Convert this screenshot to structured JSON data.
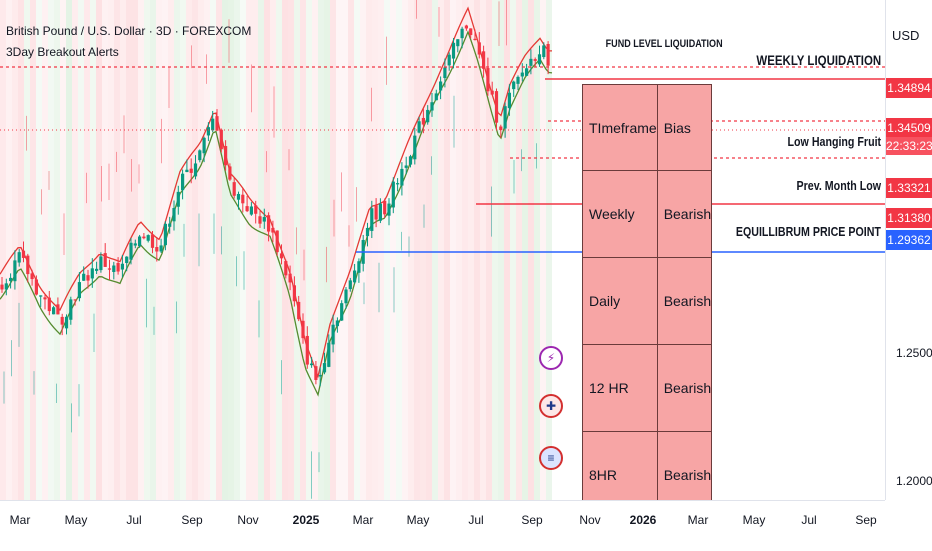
{
  "header": {
    "symbol_title": "British Pound / U.S. Dollar · 3D · FOREXCOM",
    "indicator_name": "3Day Breakout Alerts"
  },
  "annotations": {
    "fund_level": "FUND LEVEL LIQUIDATION",
    "weekly_liq": "WEEKLY LIQUIDATION",
    "low_hanging": "Low Hanging Fruit",
    "prev_month_low": "Prev. Month Low",
    "equilibrium": "EQUILLIBRUM PRICE POINT"
  },
  "price_axis": {
    "currency": "USD",
    "tags": [
      {
        "value": "1.34894",
        "color": "#f23645"
      },
      {
        "value": "1.34509",
        "color": "#f23645"
      },
      {
        "value": "22:33:23",
        "color": "#f23645"
      },
      {
        "value": "1.33321",
        "color": "#f23645"
      },
      {
        "value": "1.31380",
        "color": "#f23645"
      },
      {
        "value": "1.29362",
        "color": "#2962ff"
      }
    ],
    "labels": [
      "1.25000",
      "1.20000"
    ]
  },
  "time_axis": {
    "labels": [
      {
        "text": "Mar",
        "bold": false
      },
      {
        "text": "May",
        "bold": false
      },
      {
        "text": "Jul",
        "bold": false
      },
      {
        "text": "Sep",
        "bold": false
      },
      {
        "text": "Nov",
        "bold": false
      },
      {
        "text": "2025",
        "bold": true
      },
      {
        "text": "Mar",
        "bold": false
      },
      {
        "text": "May",
        "bold": false
      },
      {
        "text": "Jul",
        "bold": false
      },
      {
        "text": "Sep",
        "bold": false
      },
      {
        "text": "Nov",
        "bold": false
      },
      {
        "text": "2026",
        "bold": true
      },
      {
        "text": "Mar",
        "bold": false
      },
      {
        "text": "May",
        "bold": false
      },
      {
        "text": "Jul",
        "bold": false
      },
      {
        "text": "Sep",
        "bold": false
      }
    ]
  },
  "bias_table": {
    "header": [
      "TImeframe",
      "Bias"
    ],
    "rows": [
      [
        "Weekly",
        "Bearish"
      ],
      [
        "Daily",
        "Bearish"
      ],
      [
        "12 HR",
        "Bearish"
      ],
      [
        "8HR",
        "Bearish"
      ]
    ]
  },
  "badges": [
    {
      "icon": "lightning-icon",
      "glyph": "⚡",
      "color": "#9c27b0"
    },
    {
      "icon": "uk-flag-icon",
      "glyph": "✚",
      "color": "#d32f2f"
    },
    {
      "icon": "us-flag-icon",
      "glyph": "≡",
      "color": "#1e40af"
    }
  ],
  "chart_data": {
    "type": "candlestick",
    "symbol": "GBPUSD",
    "timeframe": "3D",
    "ylim": [
      1.18,
      1.37
    ],
    "horizontal_levels": [
      {
        "name": "FUND LEVEL LIQUIDATION",
        "value": 1.362,
        "style": "dotted",
        "color": "#f23645"
      },
      {
        "name": "WEEKLY LIQUIDATION",
        "value": 1.34894,
        "style": "solid",
        "color": "#f23645"
      },
      {
        "name": "Low Hanging Fruit",
        "value": 1.34509,
        "style": "dotted",
        "color": "#f23645"
      },
      {
        "name": "Prev. Month Low",
        "value": 1.33321,
        "style": "dotted",
        "color": "#f23645"
      },
      {
        "name": "EQUILLIBRUM PRICE POINT",
        "value": 1.3138,
        "style": "solid",
        "color": "#f23645"
      },
      {
        "name": "Blue Level",
        "value": 1.29362,
        "style": "solid",
        "color": "#2962ff"
      }
    ],
    "close_path": [
      [
        0,
        1.262
      ],
      [
        20,
        1.272
      ],
      [
        40,
        1.258
      ],
      [
        60,
        1.248
      ],
      [
        80,
        1.262
      ],
      [
        100,
        1.271
      ],
      [
        120,
        1.266
      ],
      [
        140,
        1.282
      ],
      [
        160,
        1.276
      ],
      [
        180,
        1.3
      ],
      [
        200,
        1.312
      ],
      [
        215,
        1.326
      ],
      [
        230,
        1.3
      ],
      [
        250,
        1.29
      ],
      [
        270,
        1.284
      ],
      [
        290,
        1.262
      ],
      [
        305,
        1.236
      ],
      [
        318,
        1.224
      ],
      [
        330,
        1.244
      ],
      [
        350,
        1.262
      ],
      [
        370,
        1.288
      ],
      [
        385,
        1.291
      ],
      [
        400,
        1.304
      ],
      [
        420,
        1.322
      ],
      [
        440,
        1.34
      ],
      [
        455,
        1.352
      ],
      [
        468,
        1.362
      ],
      [
        478,
        1.35
      ],
      [
        490,
        1.334
      ],
      [
        500,
        1.322
      ],
      [
        510,
        1.334
      ],
      [
        525,
        1.344
      ],
      [
        540,
        1.352
      ],
      [
        548,
        1.348
      ]
    ]
  }
}
